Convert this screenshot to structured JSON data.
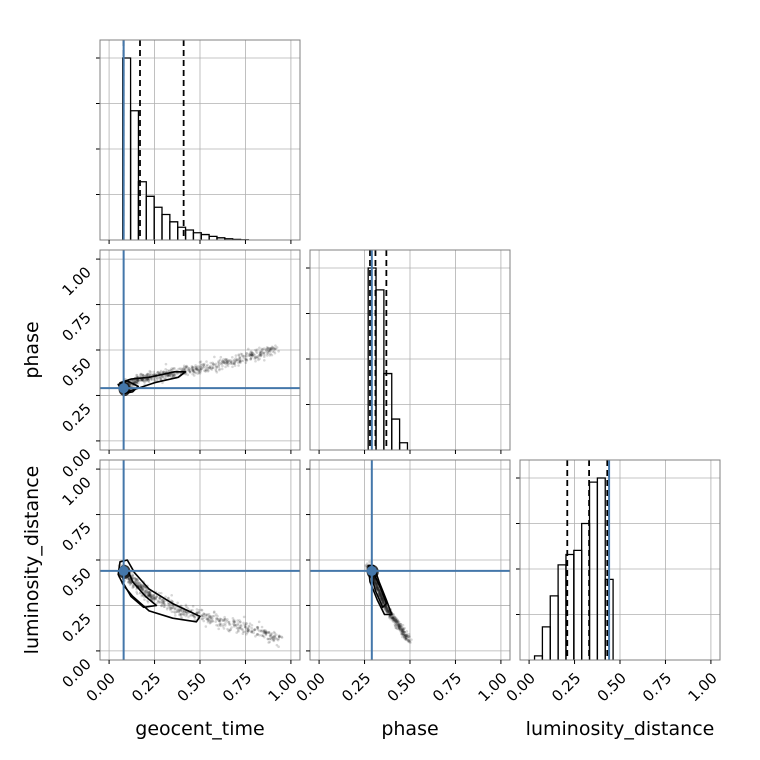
{
  "chart_data": {
    "type": "corner",
    "parameters": [
      "geocent_time",
      "phase",
      "luminosity_distance"
    ],
    "range": [
      -0.05,
      1.05
    ],
    "tick_values": [
      0.0,
      0.25,
      0.5,
      0.75,
      1.0
    ],
    "tick_labels": [
      "0.00",
      "0.25",
      "0.50",
      "0.75",
      "1.00"
    ],
    "truth": {
      "geocent_time": 0.08,
      "phase": 0.29,
      "luminosity_distance": 0.44
    },
    "colors": {
      "truth": "#4477aa",
      "hist": "#000000",
      "grid": "#b0b0b0",
      "frame": "#808080",
      "samples": "#222222"
    },
    "histograms": {
      "geocent_time": {
        "bin_start": 0.075,
        "bin_width": 0.0432,
        "counts": [
          1.0,
          0.71,
          0.32,
          0.24,
          0.18,
          0.14,
          0.1,
          0.07,
          0.055,
          0.04,
          0.03,
          0.02,
          0.012,
          0.007,
          0.003,
          0.001
        ],
        "quantiles": [
          0.08,
          0.17,
          0.41
        ]
      },
      "phase": {
        "bin_start": 0.27,
        "bin_width": 0.0432,
        "counts": [
          1.0,
          0.88,
          0.42,
          0.17,
          0.04
        ],
        "quantiles": [
          0.28,
          0.31,
          0.37
        ]
      },
      "luminosity_distance": {
        "bin_start": 0.03,
        "bin_width": 0.0432,
        "counts": [
          0.02,
          0.16,
          0.31,
          0.46,
          0.51,
          0.53,
          0.66,
          0.86,
          0.88,
          0.39
        ],
        "quantiles": [
          0.21,
          0.33,
          0.43
        ]
      }
    },
    "pairs": [
      {
        "x": "geocent_time",
        "y": "phase",
        "trend": {
          "x": [
            0.08,
            0.2,
            0.35,
            0.5,
            0.65,
            0.8,
            0.92
          ],
          "y": [
            0.3,
            0.35,
            0.37,
            0.4,
            0.43,
            0.47,
            0.51
          ]
        },
        "spread": 0.015,
        "contours": [
          {
            "x": [
              0.06,
              0.12,
              0.22,
              0.36,
              0.42,
              0.38,
              0.25,
              0.16,
              0.1,
              0.06
            ],
            "y": [
              0.32,
              0.34,
              0.35,
              0.38,
              0.38,
              0.35,
              0.32,
              0.29,
              0.27,
              0.32
            ]
          },
          {
            "x": [
              0.05,
              0.1,
              0.16,
              0.13,
              0.08,
              0.05
            ],
            "y": [
              0.31,
              0.33,
              0.3,
              0.27,
              0.26,
              0.31
            ]
          }
        ]
      },
      {
        "x": "geocent_time",
        "y": "luminosity_distance",
        "trend": {
          "x": [
            0.08,
            0.15,
            0.25,
            0.4,
            0.55,
            0.7,
            0.85,
            0.95
          ],
          "y": [
            0.44,
            0.36,
            0.29,
            0.22,
            0.18,
            0.14,
            0.1,
            0.06
          ]
        },
        "spread": 0.018,
        "contours": [
          {
            "x": [
              0.06,
              0.1,
              0.14,
              0.22,
              0.35,
              0.5,
              0.48,
              0.35,
              0.22,
              0.13,
              0.08,
              0.05,
              0.06
            ],
            "y": [
              0.49,
              0.5,
              0.43,
              0.34,
              0.26,
              0.19,
              0.16,
              0.18,
              0.22,
              0.3,
              0.36,
              0.42,
              0.49
            ]
          },
          {
            "x": [
              0.07,
              0.1,
              0.13,
              0.2,
              0.26,
              0.19,
              0.12,
              0.08,
              0.07
            ],
            "y": [
              0.46,
              0.45,
              0.38,
              0.3,
              0.25,
              0.24,
              0.3,
              0.37,
              0.46
            ]
          }
        ]
      },
      {
        "x": "phase",
        "y": "luminosity_distance",
        "trend": {
          "x": [
            0.28,
            0.31,
            0.34,
            0.38,
            0.42,
            0.46,
            0.49
          ],
          "y": [
            0.45,
            0.38,
            0.3,
            0.22,
            0.16,
            0.11,
            0.07
          ]
        },
        "spread": 0.014,
        "contours": [
          {
            "x": [
              0.27,
              0.3,
              0.33,
              0.37,
              0.4,
              0.36,
              0.32,
              0.28,
              0.27
            ],
            "y": [
              0.47,
              0.47,
              0.38,
              0.28,
              0.2,
              0.2,
              0.28,
              0.38,
              0.47
            ]
          },
          {
            "x": [
              0.28,
              0.3,
              0.34,
              0.37,
              0.35,
              0.31,
              0.28
            ],
            "y": [
              0.44,
              0.43,
              0.34,
              0.26,
              0.24,
              0.33,
              0.44
            ]
          }
        ]
      }
    ]
  }
}
